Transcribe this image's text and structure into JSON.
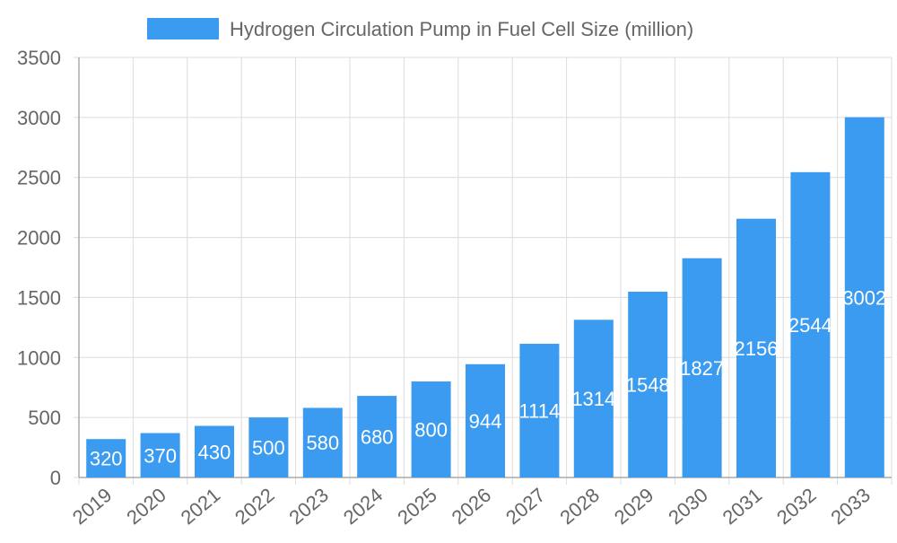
{
  "chart_data": {
    "type": "bar",
    "title": "",
    "xlabel": "",
    "ylabel": "",
    "categories": [
      "2019",
      "2020",
      "2021",
      "2022",
      "2023",
      "2024",
      "2025",
      "2026",
      "2027",
      "2028",
      "2029",
      "2030",
      "2031",
      "2032",
      "2033"
    ],
    "series": [
      {
        "name": "Hydrogen Circulation Pump in Fuel Cell Size (million)",
        "values": [
          320,
          370,
          430,
          500,
          580,
          680,
          800,
          944,
          1114,
          1314,
          1548,
          1827,
          2156,
          2544,
          3002
        ],
        "color": "#3a9bf0"
      }
    ],
    "ylim": [
      0,
      3500
    ],
    "yticks": [
      0,
      500,
      1000,
      1500,
      2000,
      2500,
      3000,
      3500
    ],
    "grid": true,
    "legend": "top-center",
    "data_labels": "center"
  }
}
